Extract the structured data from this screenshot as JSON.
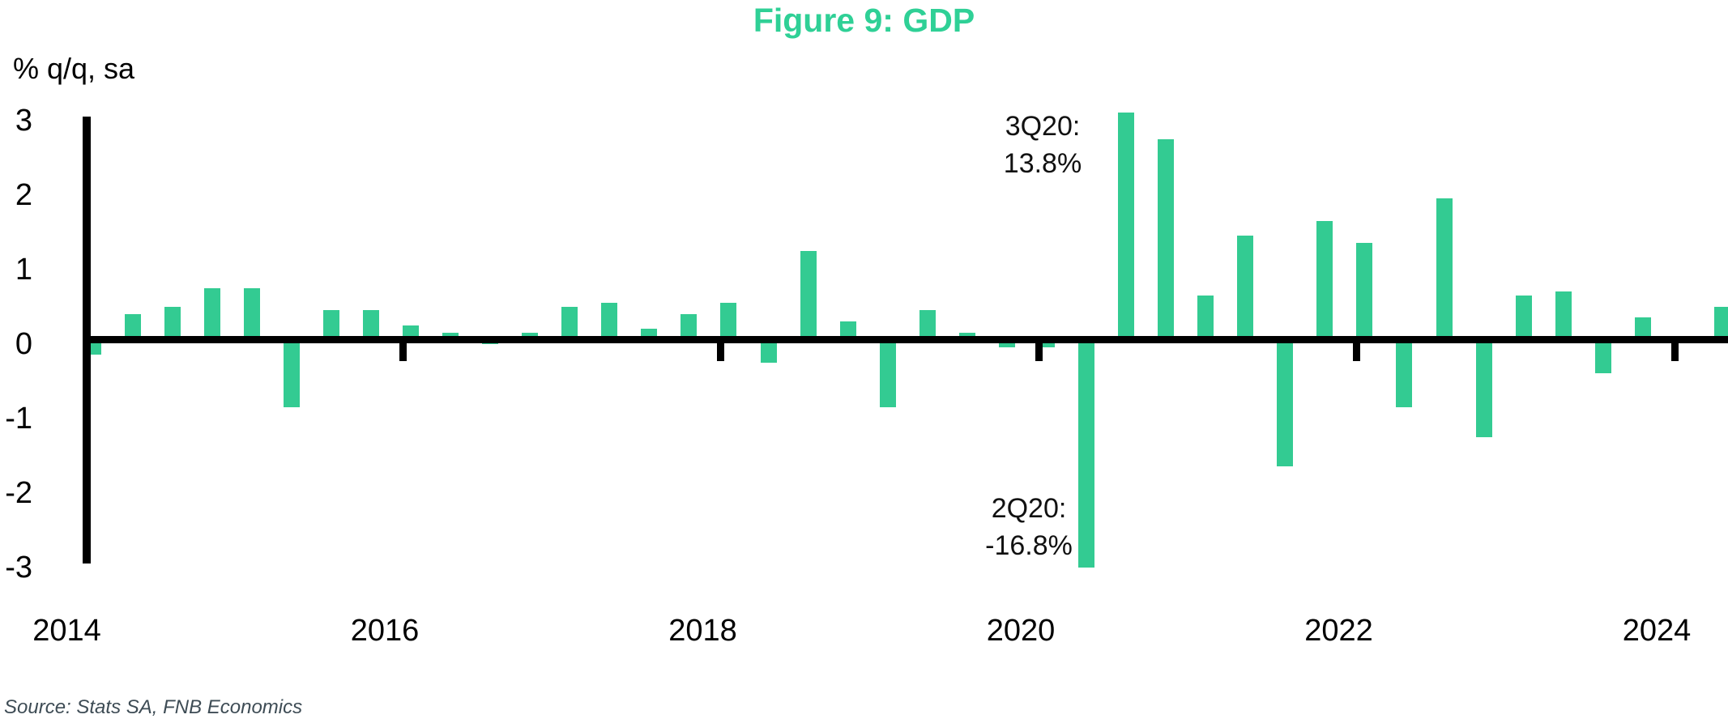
{
  "title": "Figure 9: GDP",
  "source_note": "Source: Stats SA, FNB Economics",
  "colors": {
    "title_green": "#2FD096",
    "bar_green": "#33CB92",
    "axis_black": "#000000",
    "source_gray": "#3e4c55",
    "annotation_black": "#111111"
  },
  "chart_data": {
    "type": "bar",
    "title": "Figure 9: GDP",
    "ylabel": "% q/q, sa",
    "xlabel": "",
    "ylim": [
      -3,
      3
    ],
    "yticks": [
      3,
      2,
      1,
      0,
      -1,
      -2,
      -3
    ],
    "xtick_years": [
      2014,
      2016,
      2018,
      2020,
      2022,
      2024
    ],
    "grid": false,
    "legend": "none",
    "bars_clipped_at_axis_limits": [
      "2020Q2",
      "2020Q3"
    ],
    "series_name": "GDP growth, % q/q, seasonally adjusted",
    "categories": [
      "2014Q1",
      "2014Q2",
      "2014Q3",
      "2014Q4",
      "2015Q1",
      "2015Q2",
      "2015Q3",
      "2015Q4",
      "2016Q1",
      "2016Q2",
      "2016Q3",
      "2016Q4",
      "2017Q1",
      "2017Q2",
      "2017Q3",
      "2017Q4",
      "2018Q1",
      "2018Q2",
      "2018Q3",
      "2018Q4",
      "2019Q1",
      "2019Q2",
      "2019Q3",
      "2019Q4",
      "2020Q1",
      "2020Q2",
      "2020Q3",
      "2020Q4",
      "2021Q1",
      "2021Q2",
      "2021Q3",
      "2021Q4",
      "2022Q1",
      "2022Q2",
      "2022Q3",
      "2022Q4",
      "2023Q1",
      "2023Q2",
      "2023Q3",
      "2023Q4",
      "2024Q1",
      "2024Q2"
    ],
    "values": [
      -0.2,
      0.35,
      0.45,
      0.7,
      0.7,
      -0.9,
      0.4,
      0.4,
      0.2,
      0.1,
      -0.05,
      0.1,
      0.45,
      0.5,
      0.15,
      0.35,
      0.5,
      -0.3,
      1.2,
      0.25,
      -0.9,
      0.4,
      0.1,
      -0.1,
      -0.1,
      -16.8,
      13.8,
      2.7,
      0.6,
      1.4,
      -1.7,
      1.6,
      1.3,
      -0.9,
      1.9,
      -1.3,
      0.6,
      0.65,
      -0.45,
      0.3,
      0.05,
      0.45
    ],
    "annotations": [
      {
        "quarter": "3Q20",
        "line1": "3Q20:",
        "line2": "13.8%"
      },
      {
        "quarter": "2Q20",
        "line1": "2Q20:",
        "line2": "-16.8%"
      }
    ]
  }
}
